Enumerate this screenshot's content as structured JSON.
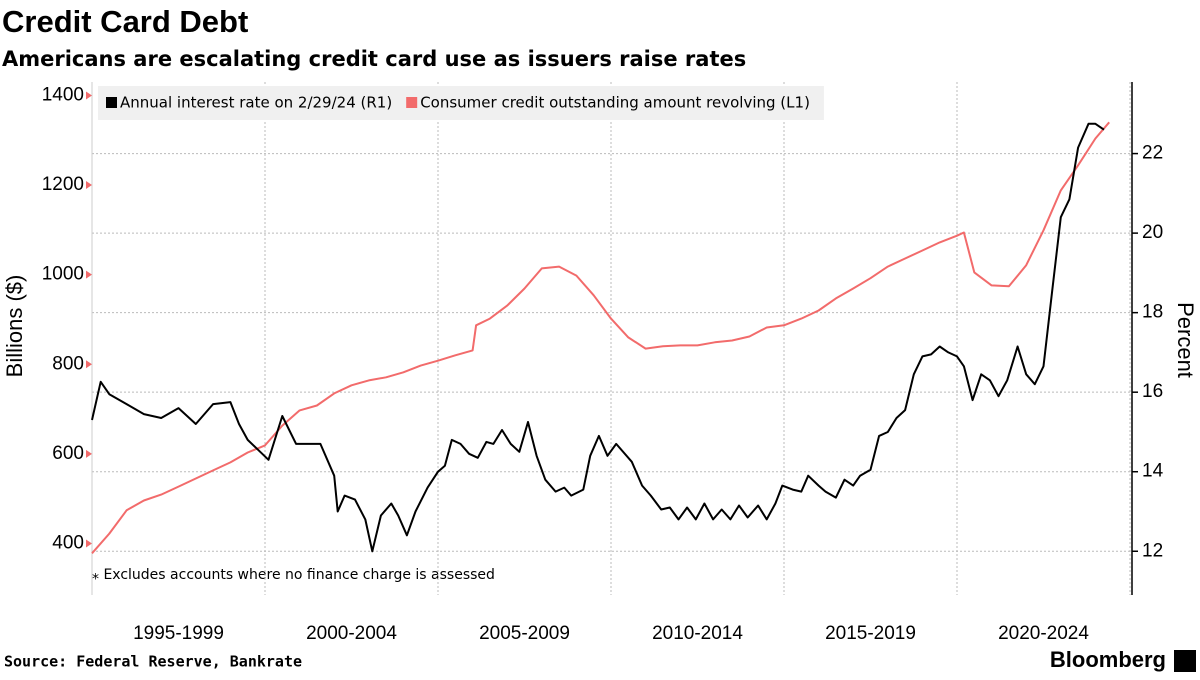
{
  "chart_data": {
    "type": "line",
    "title": "Credit Card Debt",
    "subtitle": "Americans are escalating credit card use as issuers raise rates",
    "y_label": "Billions ($)",
    "y2_label": "Percent",
    "xlim": [
      1995,
      2025
    ],
    "xticks": [
      1995,
      2000,
      2005,
      2010,
      2015,
      2020,
      2025
    ],
    "xtick_labels": [
      {
        "value": 1997.5,
        "label": "1995-1999"
      },
      {
        "value": 2002.5,
        "label": "2000-2004"
      },
      {
        "value": 2007.5,
        "label": "2005-2009"
      },
      {
        "value": 2012.5,
        "label": "2010-2014"
      },
      {
        "value": 2017.5,
        "label": "2015-2019"
      },
      {
        "value": 2022.5,
        "label": "2020-2024"
      }
    ],
    "ylim": [
      285,
      1430
    ],
    "yticks": [
      400,
      600,
      800,
      1000,
      1200,
      1400
    ],
    "y2lim": [
      10.9,
      23.8
    ],
    "y2ticks": [
      12,
      14,
      16,
      18,
      20,
      22
    ],
    "grid": true,
    "legend": "upper left",
    "series": [
      {
        "name": "Annual interest rate on 2/29/24 (R1)",
        "color": "#000000",
        "axis": "y2",
        "x": [
          1995.0,
          1995.25,
          1995.5,
          1996.0,
          1996.5,
          1997.0,
          1997.5,
          1998.0,
          1998.5,
          1999.0,
          1999.25,
          1999.5,
          1999.8,
          2000.1,
          2000.5,
          2000.9,
          2001.6,
          2002.0,
          2002.1,
          2002.3,
          2002.6,
          2002.9,
          2003.1,
          2003.35,
          2003.65,
          2003.85,
          2004.1,
          2004.35,
          2004.7,
          2005.0,
          2005.2,
          2005.4,
          2005.65,
          2005.9,
          2006.15,
          2006.4,
          2006.6,
          2006.85,
          2007.1,
          2007.35,
          2007.6,
          2007.85,
          2008.1,
          2008.4,
          2008.65,
          2008.85,
          2009.2,
          2009.4,
          2009.65,
          2009.9,
          2010.15,
          2010.6,
          2010.9,
          2011.15,
          2011.45,
          2011.7,
          2011.95,
          2012.2,
          2012.45,
          2012.7,
          2012.95,
          2013.2,
          2013.45,
          2013.7,
          2013.95,
          2014.25,
          2014.5,
          2014.75,
          2014.95,
          2015.25,
          2015.5,
          2015.7,
          2016.0,
          2016.2,
          2016.5,
          2016.75,
          2017.0,
          2017.2,
          2017.5,
          2017.75,
          2018.0,
          2018.25,
          2018.5,
          2018.75,
          2019.0,
          2019.25,
          2019.5,
          2019.75,
          2020.0,
          2020.2,
          2020.45,
          2020.7,
          2020.95,
          2021.2,
          2021.45,
          2021.75,
          2022.0,
          2022.25,
          2022.5,
          2022.75,
          2023.0,
          2023.25,
          2023.5,
          2023.8,
          2024.0,
          2024.25
        ],
        "values": [
          15.3,
          16.26,
          15.95,
          15.7,
          15.45,
          15.35,
          15.6,
          15.2,
          15.7,
          15.75,
          15.2,
          14.8,
          14.55,
          14.3,
          15.4,
          14.7,
          14.7,
          13.9,
          13.0,
          13.4,
          13.3,
          12.8,
          12.0,
          12.9,
          13.2,
          12.9,
          12.4,
          13.0,
          13.6,
          14.0,
          14.15,
          14.8,
          14.7,
          14.45,
          14.35,
          14.75,
          14.7,
          15.05,
          14.7,
          14.5,
          15.25,
          14.4,
          13.8,
          13.5,
          13.6,
          13.4,
          13.55,
          14.4,
          14.9,
          14.4,
          14.7,
          14.25,
          13.65,
          13.4,
          13.05,
          13.1,
          12.8,
          13.1,
          12.8,
          13.2,
          12.8,
          13.05,
          12.8,
          13.15,
          12.85,
          13.15,
          12.8,
          13.2,
          13.65,
          13.55,
          13.5,
          13.9,
          13.65,
          13.5,
          13.35,
          13.8,
          13.65,
          13.9,
          14.05,
          14.9,
          15.0,
          15.35,
          15.55,
          16.45,
          16.9,
          16.95,
          17.15,
          17.0,
          16.9,
          16.65,
          15.8,
          16.45,
          16.3,
          15.9,
          16.3,
          17.15,
          16.45,
          16.2,
          16.65,
          18.55,
          20.4,
          20.85,
          22.15,
          22.75,
          22.75,
          22.6
        ]
      },
      {
        "name": "Consumer credit outstanding amount revolving (L1)",
        "color": "#f26b6b",
        "axis": "y",
        "x": [
          1995.0,
          1995.5,
          1996.0,
          1996.5,
          1997.0,
          1997.5,
          1998.0,
          1998.5,
          1999.0,
          1999.5,
          2000.0,
          2000.5,
          2001.0,
          2001.5,
          2002.0,
          2002.5,
          2003.0,
          2003.5,
          2004.0,
          2004.5,
          2005.0,
          2005.5,
          2006.0,
          2006.1,
          2006.5,
          2007.0,
          2007.5,
          2008.0,
          2008.5,
          2009.0,
          2009.5,
          2010.0,
          2010.5,
          2011.0,
          2011.5,
          2012.0,
          2012.5,
          2013.0,
          2013.5,
          2014.0,
          2014.5,
          2015.0,
          2015.5,
          2016.0,
          2016.5,
          2017.0,
          2017.5,
          2018.0,
          2018.5,
          2019.0,
          2019.5,
          2020.0,
          2020.2,
          2020.5,
          2021.0,
          2021.5,
          2022.0,
          2022.5,
          2023.0,
          2023.5,
          2024.0,
          2024.4
        ],
        "values": [
          378,
          422,
          474,
          496,
          509,
          527,
          545,
          563,
          581,
          603,
          619,
          663,
          697,
          708,
          735,
          753,
          764,
          771,
          782,
          797,
          808,
          820,
          831,
          887,
          902,
          931,
          969,
          1014,
          1018,
          998,
          954,
          902,
          860,
          835,
          840,
          842,
          842,
          849,
          853,
          862,
          882,
          887,
          902,
          920,
          947,
          969,
          992,
          1018,
          1036,
          1054,
          1072,
          1087,
          1094,
          1005,
          976,
          974,
          1021,
          1099,
          1188,
          1244,
          1304,
          1340
        ]
      }
    ],
    "note": "⁎ Excludes accounts where no finance charge is assessed",
    "source": "Source: Federal Reserve, Bankrate",
    "brand": "Bloomberg"
  }
}
